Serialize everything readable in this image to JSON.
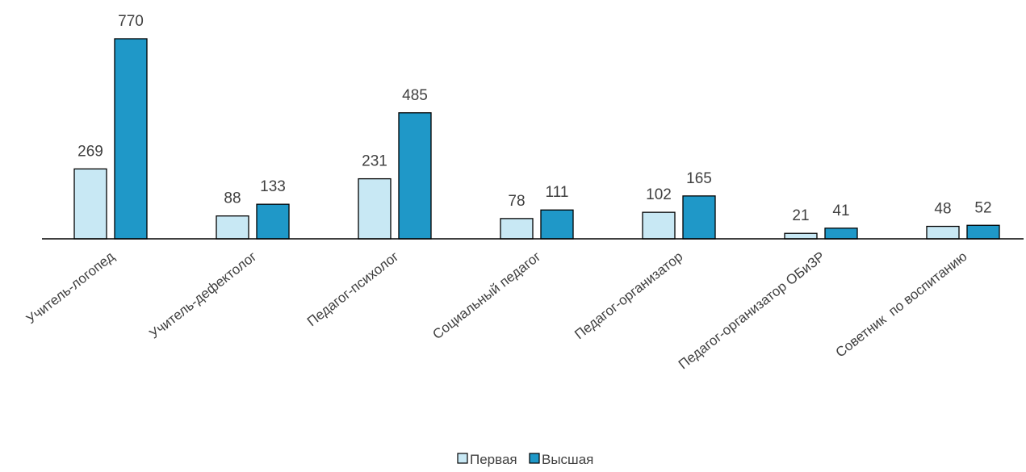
{
  "chart_data": {
    "type": "bar",
    "categories": [
      "Учитель-логопед",
      "Учитель-дефектолог",
      "Педагог-психолог",
      "Социальный педагог",
      "Педагог-организатор",
      "Педагог-организатор ОБиЗР",
      "Советник  по воспитанию"
    ],
    "series": [
      {
        "name": "Первая",
        "color": "#c8e8f4",
        "values": [
          269,
          88,
          231,
          78,
          102,
          21,
          48
        ]
      },
      {
        "name": "Высшая",
        "color": "#1f98c8",
        "values": [
          770,
          133,
          485,
          111,
          165,
          41,
          52
        ]
      }
    ],
    "legend_position": "bottom",
    "grid": false,
    "ylim": [
      0,
      770
    ],
    "title": "",
    "xlabel": "",
    "ylabel": ""
  }
}
